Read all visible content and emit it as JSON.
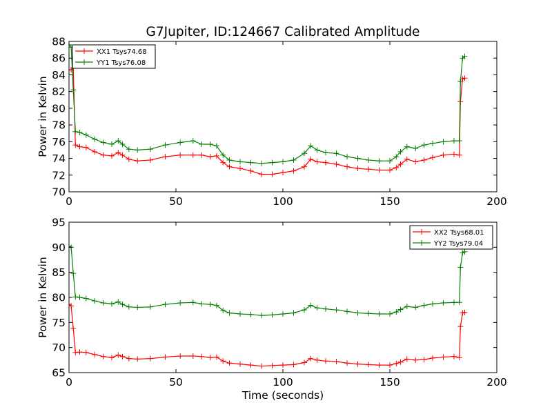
{
  "title": "G7Jupiter, ID:124667 Calibrated Amplitude",
  "colors": {
    "xx": "#ff0000",
    "yy": "#008000",
    "axis": "#000000",
    "background": "#ffffff"
  },
  "chart_data": [
    {
      "type": "line",
      "title": "G7Jupiter, ID:124667 Calibrated Amplitude",
      "xlabel": "",
      "ylabel": "Power in Kelvin",
      "xlim": [
        0,
        200
      ],
      "ylim": [
        70,
        88
      ],
      "xticks": [
        "0",
        "50",
        "100",
        "150",
        "200"
      ],
      "yticks": [
        "70",
        "72",
        "74",
        "76",
        "78",
        "80",
        "82",
        "84",
        "86",
        "88"
      ],
      "grid": false,
      "legend": "top-left",
      "series": [
        {
          "name": "XX1 Tsys74.68",
          "color": "#ff0000",
          "x": [
            0,
            1,
            2,
            3,
            5,
            8,
            12,
            16,
            20,
            23,
            25,
            28,
            32,
            38,
            45,
            52,
            58,
            62,
            66,
            69,
            72,
            75,
            80,
            85,
            90,
            95,
            100,
            105,
            110,
            113,
            116,
            120,
            125,
            130,
            135,
            140,
            145,
            150,
            153,
            155,
            158,
            162,
            166,
            170,
            175,
            180,
            182.5,
            183,
            184,
            185
          ],
          "y": [
            84.6,
            84.6,
            84.8,
            75.6,
            75.4,
            75.3,
            74.8,
            74.4,
            74.3,
            74.7,
            74.4,
            73.9,
            73.7,
            73.8,
            74.2,
            74.4,
            74.4,
            74.4,
            74.2,
            74.3,
            73.5,
            73.0,
            72.8,
            72.5,
            72.1,
            72.1,
            72.3,
            72.5,
            73.0,
            73.9,
            73.6,
            73.5,
            73.3,
            73.0,
            72.8,
            72.7,
            72.6,
            72.6,
            72.9,
            73.3,
            73.9,
            73.6,
            73.8,
            74.1,
            74.4,
            74.5,
            74.4,
            80.8,
            83.5,
            83.6
          ]
        },
        {
          "name": "YY1 Tsys76.08",
          "color": "#008000",
          "x": [
            0,
            1,
            2,
            3,
            5,
            8,
            12,
            16,
            20,
            23,
            25,
            28,
            32,
            38,
            45,
            52,
            58,
            62,
            66,
            69,
            72,
            75,
            80,
            85,
            90,
            95,
            100,
            105,
            110,
            113,
            116,
            120,
            125,
            130,
            135,
            140,
            145,
            150,
            153,
            155,
            158,
            162,
            166,
            170,
            175,
            180,
            182.5,
            183,
            184,
            185
          ],
          "y": [
            87.6,
            87.3,
            82.2,
            77.2,
            77.1,
            76.8,
            76.3,
            75.9,
            75.7,
            76.1,
            75.7,
            75.1,
            75.0,
            75.1,
            75.6,
            75.9,
            76.1,
            75.7,
            75.7,
            75.5,
            74.4,
            73.8,
            73.6,
            73.5,
            73.4,
            73.5,
            73.6,
            73.8,
            74.6,
            75.5,
            75.0,
            74.7,
            74.6,
            74.2,
            74.0,
            73.8,
            73.7,
            73.7,
            74.2,
            74.8,
            75.4,
            75.2,
            75.6,
            75.8,
            76.0,
            76.1,
            76.1,
            83.2,
            86.0,
            86.2
          ]
        }
      ]
    },
    {
      "type": "line",
      "title": "",
      "xlabel": "Time (seconds)",
      "ylabel": "Power in Kelvin",
      "xlim": [
        0,
        200
      ],
      "ylim": [
        65,
        95
      ],
      "xticks": [
        "0",
        "50",
        "100",
        "150",
        "200"
      ],
      "yticks": [
        "65",
        "70",
        "75",
        "80",
        "85",
        "90",
        "95"
      ],
      "grid": false,
      "legend": "top-right",
      "series": [
        {
          "name": "XX2 Tsys68.01",
          "color": "#ff0000",
          "x": [
            0,
            1,
            2,
            3,
            5,
            8,
            12,
            16,
            20,
            23,
            25,
            28,
            32,
            38,
            45,
            52,
            58,
            62,
            66,
            69,
            72,
            75,
            80,
            85,
            90,
            95,
            100,
            105,
            110,
            113,
            116,
            120,
            125,
            130,
            135,
            140,
            145,
            150,
            153,
            155,
            158,
            162,
            166,
            170,
            175,
            180,
            182.5,
            183,
            184,
            185
          ],
          "y": [
            78.6,
            78.3,
            73.8,
            69.0,
            69.1,
            69.0,
            68.6,
            68.2,
            68.0,
            68.5,
            68.2,
            67.8,
            67.7,
            67.8,
            68.1,
            68.3,
            68.3,
            68.2,
            68.0,
            68.1,
            67.3,
            66.9,
            66.7,
            66.5,
            66.3,
            66.4,
            66.5,
            66.6,
            67.0,
            67.8,
            67.5,
            67.3,
            67.2,
            66.9,
            66.7,
            66.6,
            66.5,
            66.5,
            66.8,
            67.1,
            67.7,
            67.5,
            67.6,
            67.9,
            68.1,
            68.2,
            68.0,
            74.2,
            76.9,
            77.0
          ]
        },
        {
          "name": "YY2 Tsys79.04",
          "color": "#008000",
          "x": [
            0,
            1,
            2,
            3,
            5,
            8,
            12,
            16,
            20,
            23,
            25,
            28,
            32,
            38,
            45,
            52,
            58,
            62,
            66,
            69,
            72,
            75,
            80,
            85,
            90,
            95,
            100,
            105,
            110,
            113,
            116,
            120,
            125,
            130,
            135,
            140,
            145,
            150,
            153,
            155,
            158,
            162,
            166,
            170,
            175,
            180,
            182.5,
            183,
            184,
            185
          ],
          "y": [
            90.2,
            90.0,
            84.8,
            80.1,
            80.0,
            79.8,
            79.3,
            78.9,
            78.7,
            79.1,
            78.6,
            78.1,
            78.0,
            78.1,
            78.6,
            78.9,
            79.0,
            78.7,
            78.6,
            78.4,
            77.4,
            76.9,
            76.7,
            76.6,
            76.4,
            76.5,
            76.7,
            76.9,
            77.5,
            78.4,
            77.9,
            77.7,
            77.5,
            77.2,
            76.9,
            76.8,
            76.7,
            76.7,
            77.1,
            77.6,
            78.2,
            78.0,
            78.4,
            78.7,
            78.9,
            79.0,
            79.0,
            86.0,
            88.9,
            89.1
          ]
        }
      ]
    }
  ]
}
